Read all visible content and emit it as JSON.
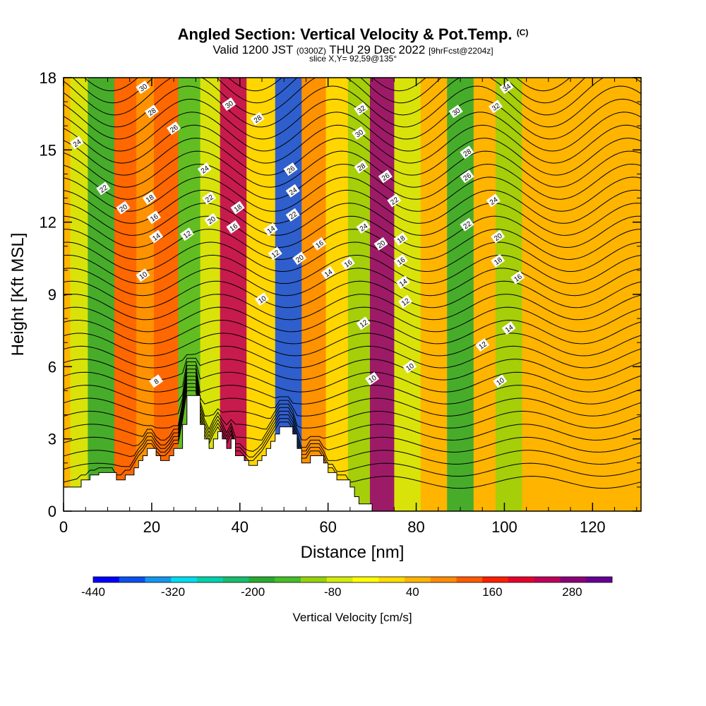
{
  "title": {
    "main": "Angled Section: Vertical Velocity & Pot.Temp.",
    "units": "(C)",
    "valid_prefix": "Valid 1200 JST",
    "valid_utc": "(0300Z)",
    "valid_date": "THU 29 Dec 2022",
    "forecast": "[9hrFcst@2204z]",
    "slice": "slice X,Y= 92,59@135°"
  },
  "chart_data": {
    "type": "heatmap",
    "xlabel": "Distance [nm]",
    "ylabel": "Height [Kft MSL]",
    "xlim": [
      0,
      131
    ],
    "ylim": [
      0,
      18
    ],
    "xticks": [
      0,
      20,
      40,
      60,
      80,
      100,
      120
    ],
    "yticks": [
      0,
      3,
      6,
      9,
      12,
      15,
      18
    ],
    "colorbar": {
      "label": "Vertical Velocity [cm/s]",
      "tick_labels": [
        "-440",
        "-320",
        "-200",
        "-80",
        "40",
        "160",
        "280"
      ],
      "tick_values": [
        -440,
        -320,
        -200,
        -80,
        40,
        160,
        280
      ],
      "range": [
        -440,
        340
      ],
      "colors": [
        "#0000ff",
        "#0a50f0",
        "#1496f0",
        "#00dcf0",
        "#00d2aa",
        "#14be6e",
        "#28aa32",
        "#46be28",
        "#96d20a",
        "#d2eb0a",
        "#ffff00",
        "#ffdc00",
        "#ffb400",
        "#ff8c00",
        "#ff5a00",
        "#ff1e00",
        "#e6002d",
        "#be005a",
        "#8c0078",
        "#640096"
      ]
    },
    "velocity_bands": [
      {
        "x": 3,
        "value": -80
      },
      {
        "x": 8,
        "value": -180
      },
      {
        "x": 15,
        "value": 130
      },
      {
        "x": 18,
        "value": 80
      },
      {
        "x": 23,
        "value": 110
      },
      {
        "x": 29,
        "value": -150
      },
      {
        "x": 33,
        "value": -60
      },
      {
        "x": 38,
        "value": 260
      },
      {
        "x": 45,
        "value": 20
      },
      {
        "x": 51,
        "value": -380
      },
      {
        "x": 57,
        "value": 70
      },
      {
        "x": 62,
        "value": 20
      },
      {
        "x": 67,
        "value": -120
      },
      {
        "x": 72,
        "value": 300
      },
      {
        "x": 78,
        "value": -60
      },
      {
        "x": 84,
        "value": 50
      },
      {
        "x": 90,
        "value": -180
      },
      {
        "x": 96,
        "value": 30
      },
      {
        "x": 100,
        "value": -100
      },
      {
        "x": 108,
        "value": 30
      },
      {
        "x": 118,
        "value": 40
      },
      {
        "x": 128,
        "value": 40
      }
    ],
    "isentrope_labels": [
      {
        "x": 3,
        "y": 15.3,
        "text": "24"
      },
      {
        "x": 9,
        "y": 13.4,
        "text": "22"
      },
      {
        "x": 13.5,
        "y": 12.6,
        "text": "20"
      },
      {
        "x": 18,
        "y": 17.6,
        "text": "30"
      },
      {
        "x": 20,
        "y": 16.6,
        "text": "28"
      },
      {
        "x": 19.5,
        "y": 13.0,
        "text": "18"
      },
      {
        "x": 20.5,
        "y": 12.2,
        "text": "16"
      },
      {
        "x": 21,
        "y": 11.4,
        "text": "14"
      },
      {
        "x": 25,
        "y": 15.9,
        "text": "26"
      },
      {
        "x": 28,
        "y": 11.5,
        "text": "12"
      },
      {
        "x": 18,
        "y": 9.8,
        "text": "10"
      },
      {
        "x": 21,
        "y": 5.4,
        "text": "8"
      },
      {
        "x": 32,
        "y": 14.2,
        "text": "24"
      },
      {
        "x": 33,
        "y": 13.0,
        "text": "22"
      },
      {
        "x": 33.5,
        "y": 12.1,
        "text": "20"
      },
      {
        "x": 37.5,
        "y": 16.9,
        "text": "30"
      },
      {
        "x": 44,
        "y": 16.3,
        "text": "28"
      },
      {
        "x": 39.5,
        "y": 12.6,
        "text": "18"
      },
      {
        "x": 38.5,
        "y": 11.8,
        "text": "16"
      },
      {
        "x": 47,
        "y": 11.7,
        "text": "14"
      },
      {
        "x": 48,
        "y": 10.7,
        "text": "12"
      },
      {
        "x": 45,
        "y": 8.8,
        "text": "10"
      },
      {
        "x": 51.5,
        "y": 14.2,
        "text": "26"
      },
      {
        "x": 52,
        "y": 13.3,
        "text": "24"
      },
      {
        "x": 52,
        "y": 12.3,
        "text": "22"
      },
      {
        "x": 53.5,
        "y": 10.5,
        "text": "20"
      },
      {
        "x": 58,
        "y": 11.1,
        "text": "16"
      },
      {
        "x": 60,
        "y": 9.9,
        "text": "14"
      },
      {
        "x": 64.5,
        "y": 10.3,
        "text": "16"
      },
      {
        "x": 67.5,
        "y": 16.7,
        "text": "32"
      },
      {
        "x": 67,
        "y": 15.7,
        "text": "30"
      },
      {
        "x": 67.5,
        "y": 14.3,
        "text": "28"
      },
      {
        "x": 73,
        "y": 13.9,
        "text": "26"
      },
      {
        "x": 75,
        "y": 12.9,
        "text": "22"
      },
      {
        "x": 68,
        "y": 11.8,
        "text": "24"
      },
      {
        "x": 72,
        "y": 11.1,
        "text": "20"
      },
      {
        "x": 76.5,
        "y": 11.3,
        "text": "18"
      },
      {
        "x": 76.5,
        "y": 10.4,
        "text": "16"
      },
      {
        "x": 77,
        "y": 9.5,
        "text": "14"
      },
      {
        "x": 77.5,
        "y": 8.7,
        "text": "12"
      },
      {
        "x": 68,
        "y": 7.8,
        "text": "12"
      },
      {
        "x": 78.5,
        "y": 6.0,
        "text": "10"
      },
      {
        "x": 70,
        "y": 5.5,
        "text": "10"
      },
      {
        "x": 89,
        "y": 16.6,
        "text": "30"
      },
      {
        "x": 91.5,
        "y": 14.9,
        "text": "28"
      },
      {
        "x": 91.5,
        "y": 13.9,
        "text": "26"
      },
      {
        "x": 91.5,
        "y": 11.9,
        "text": "22"
      },
      {
        "x": 97.5,
        "y": 12.9,
        "text": "24"
      },
      {
        "x": 100.5,
        "y": 17.6,
        "text": "34"
      },
      {
        "x": 98,
        "y": 16.8,
        "text": "32"
      },
      {
        "x": 98.5,
        "y": 11.4,
        "text": "20"
      },
      {
        "x": 98.5,
        "y": 10.4,
        "text": "18"
      },
      {
        "x": 103,
        "y": 9.7,
        "text": "16"
      },
      {
        "x": 101,
        "y": 7.6,
        "text": "14"
      },
      {
        "x": 95,
        "y": 6.9,
        "text": "12"
      },
      {
        "x": 99,
        "y": 5.4,
        "text": "10"
      }
    ],
    "terrain_profile": [
      [
        0,
        1.0
      ],
      [
        4,
        1.0
      ],
      [
        4,
        1.3
      ],
      [
        6,
        1.3
      ],
      [
        6,
        1.5
      ],
      [
        8,
        1.5
      ],
      [
        8,
        1.6
      ],
      [
        12,
        1.6
      ],
      [
        12,
        1.3
      ],
      [
        14,
        1.3
      ],
      [
        14,
        1.5
      ],
      [
        16,
        1.5
      ],
      [
        16,
        1.8
      ],
      [
        17,
        1.8
      ],
      [
        17,
        2.1
      ],
      [
        18,
        2.1
      ],
      [
        18,
        2.3
      ],
      [
        19,
        2.3
      ],
      [
        19,
        2.6
      ],
      [
        21,
        2.6
      ],
      [
        21,
        2.3
      ],
      [
        22,
        2.3
      ],
      [
        22,
        2.1
      ],
      [
        24,
        2.1
      ],
      [
        24,
        2.3
      ],
      [
        25,
        2.3
      ],
      [
        25,
        2.6
      ],
      [
        27,
        2.6
      ],
      [
        27,
        3.6
      ],
      [
        28,
        3.6
      ],
      [
        28,
        4.8
      ],
      [
        31,
        4.8
      ],
      [
        31,
        3.6
      ],
      [
        32,
        3.6
      ],
      [
        32,
        3.0
      ],
      [
        33,
        3.0
      ],
      [
        33,
        2.6
      ],
      [
        34,
        2.6
      ],
      [
        34,
        3.0
      ],
      [
        35,
        3.0
      ],
      [
        35,
        3.3
      ],
      [
        36,
        3.3
      ],
      [
        36,
        3.0
      ],
      [
        37,
        3.0
      ],
      [
        37,
        2.6
      ],
      [
        38,
        2.6
      ],
      [
        38,
        3.0
      ],
      [
        39,
        3.0
      ],
      [
        39,
        2.3
      ],
      [
        41,
        2.3
      ],
      [
        41,
        2.1
      ],
      [
        42,
        2.1
      ],
      [
        42,
        1.9
      ],
      [
        44,
        1.9
      ],
      [
        44,
        2.1
      ],
      [
        45,
        2.1
      ],
      [
        45,
        2.3
      ],
      [
        46,
        2.3
      ],
      [
        46,
        2.6
      ],
      [
        47,
        2.6
      ],
      [
        47,
        2.9
      ],
      [
        48,
        2.9
      ],
      [
        48,
        3.2
      ],
      [
        49,
        3.2
      ],
      [
        49,
        3.5
      ],
      [
        52,
        3.5
      ],
      [
        52,
        3.2
      ],
      [
        53,
        3.2
      ],
      [
        53,
        2.6
      ],
      [
        54,
        2.6
      ],
      [
        54,
        2.0
      ],
      [
        56,
        2.0
      ],
      [
        56,
        2.3
      ],
      [
        59,
        2.3
      ],
      [
        59,
        2.0
      ],
      [
        60,
        2.0
      ],
      [
        60,
        1.6
      ],
      [
        62,
        1.6
      ],
      [
        62,
        1.3
      ],
      [
        65,
        1.3
      ],
      [
        65,
        1.0
      ],
      [
        66,
        1.0
      ],
      [
        66,
        0.6
      ],
      [
        67,
        0.6
      ],
      [
        67,
        0.3
      ],
      [
        70,
        0.3
      ],
      [
        70,
        0.0
      ],
      [
        131,
        0.0
      ]
    ]
  }
}
